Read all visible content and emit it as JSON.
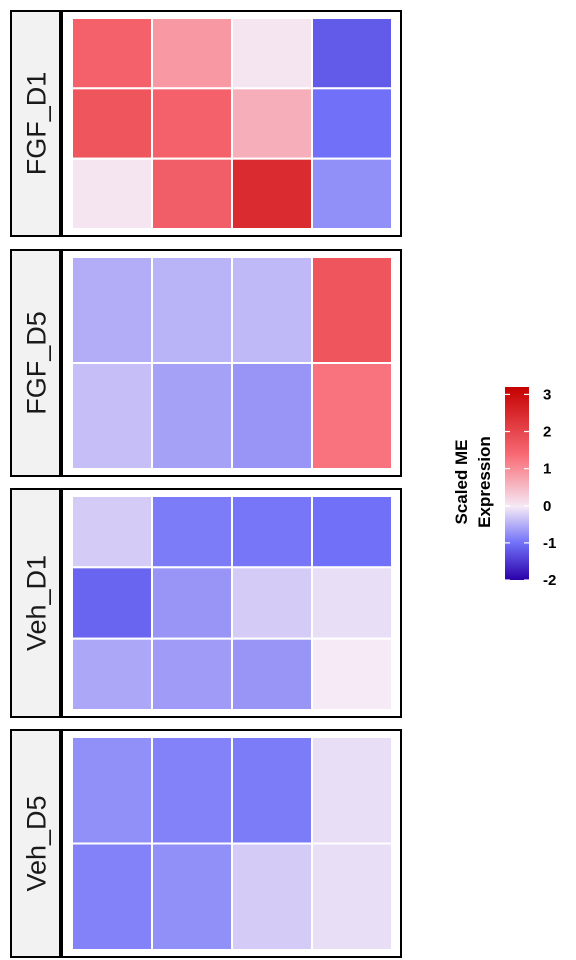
{
  "chart_data": {
    "type": "heatmap",
    "title": "",
    "xlabel": "",
    "ylabel": "",
    "facets": [
      {
        "label": "FGF_D1",
        "rows": [
          [
            1.55,
            0.9,
            0.05,
            -1.2
          ],
          [
            1.75,
            1.55,
            0.65,
            -1.0
          ],
          [
            0.05,
            1.6,
            2.45,
            -0.75
          ]
        ]
      },
      {
        "label": "FGF_D5",
        "rows": [
          [
            -0.5,
            -0.45,
            -0.4,
            1.75
          ],
          [
            -0.35,
            -0.6,
            -0.7,
            1.3
          ]
        ]
      },
      {
        "label": "Veh_D1",
        "rows": [
          [
            -0.25,
            -0.9,
            -0.95,
            -1.0
          ],
          [
            -1.1,
            -0.7,
            -0.25,
            -0.1
          ],
          [
            -0.55,
            -0.65,
            -0.7,
            0.0
          ]
        ]
      },
      {
        "label": "Veh_D5",
        "rows": [
          [
            -0.75,
            -0.85,
            -0.9,
            -0.1
          ],
          [
            -0.85,
            -0.75,
            -0.25,
            -0.1
          ]
        ]
      }
    ],
    "legend": {
      "title_lines": [
        "Scaled ME",
        "Expression"
      ],
      "ticks": [
        "3",
        "2",
        "1",
        "0",
        "-1",
        "-2"
      ],
      "tick_values": [
        3,
        2,
        1,
        0,
        -1,
        -2
      ],
      "range": [
        -2,
        3.2
      ],
      "position": "right"
    },
    "colors": {
      "low": "#2b00a8",
      "mid_low": "#7070f8",
      "mid": "#f5eaf6",
      "mid_high": "#f86a74",
      "high": "#c40000",
      "strip_fill": "#f2f2f2",
      "tile_border": "#ffffff"
    }
  }
}
